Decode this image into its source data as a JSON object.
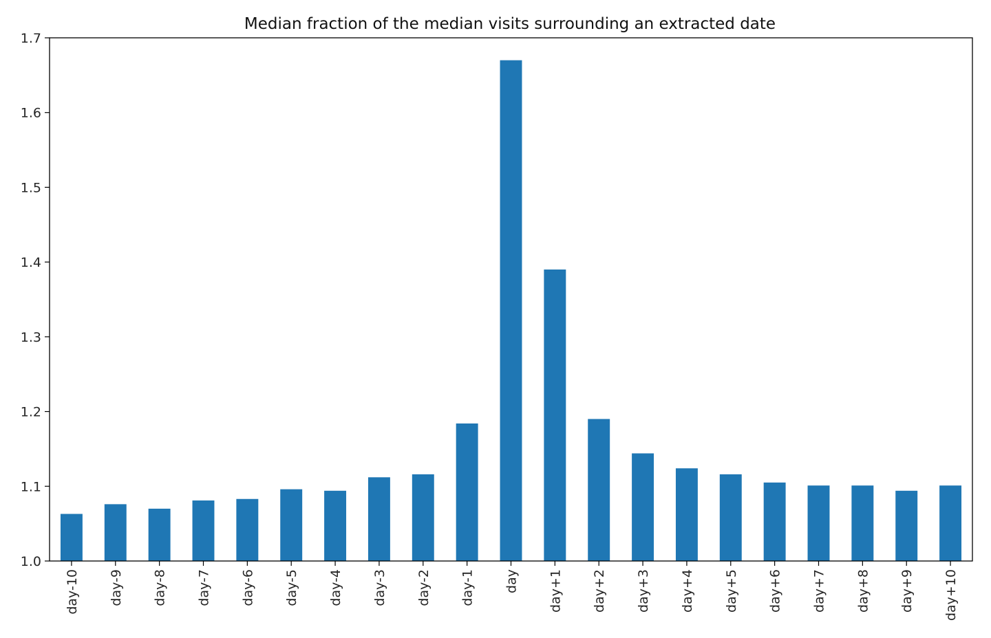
{
  "chart_data": {
    "type": "bar",
    "title": "Median fraction of the median visits surrounding an extracted date",
    "xlabel": "",
    "ylabel": "",
    "categories": [
      "day-10",
      "day-9",
      "day-8",
      "day-7",
      "day-6",
      "day-5",
      "day-4",
      "day-3",
      "day-2",
      "day-1",
      "day",
      "day+1",
      "day+2",
      "day+3",
      "day+4",
      "day+5",
      "day+6",
      "day+7",
      "day+8",
      "day+9",
      "day+10"
    ],
    "values": [
      1.063,
      1.076,
      1.07,
      1.081,
      1.083,
      1.096,
      1.094,
      1.112,
      1.116,
      1.184,
      1.67,
      1.39,
      1.19,
      1.144,
      1.124,
      1.116,
      1.105,
      1.101,
      1.101,
      1.094,
      1.101
    ],
    "ylim": [
      1.0,
      1.7
    ],
    "yticks": [
      "1.0",
      "1.1",
      "1.2",
      "1.3",
      "1.4",
      "1.5",
      "1.6",
      "1.7"
    ],
    "grid": false,
    "bar_color": "#1f77b4"
  }
}
